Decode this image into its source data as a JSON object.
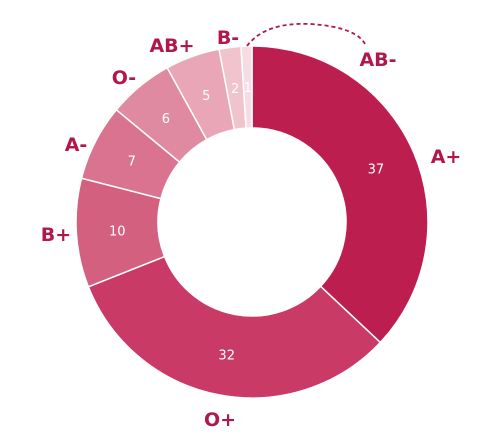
{
  "chart_data": {
    "type": "pie",
    "donut": true,
    "categories": [
      "A+",
      "O+",
      "B+",
      "A-",
      "O-",
      "AB+",
      "B-",
      "AB-"
    ],
    "values": [
      37,
      32,
      10,
      7,
      6,
      5,
      2,
      1
    ],
    "colors": [
      "#bc1f4f",
      "#c93a66",
      "#d4607f",
      "#da7390",
      "#e08aa1",
      "#e8a6b6",
      "#f0c3cd",
      "#f6dde3"
    ],
    "label_color": "#b0174a",
    "legend": "labels outside slices",
    "title": ""
  }
}
